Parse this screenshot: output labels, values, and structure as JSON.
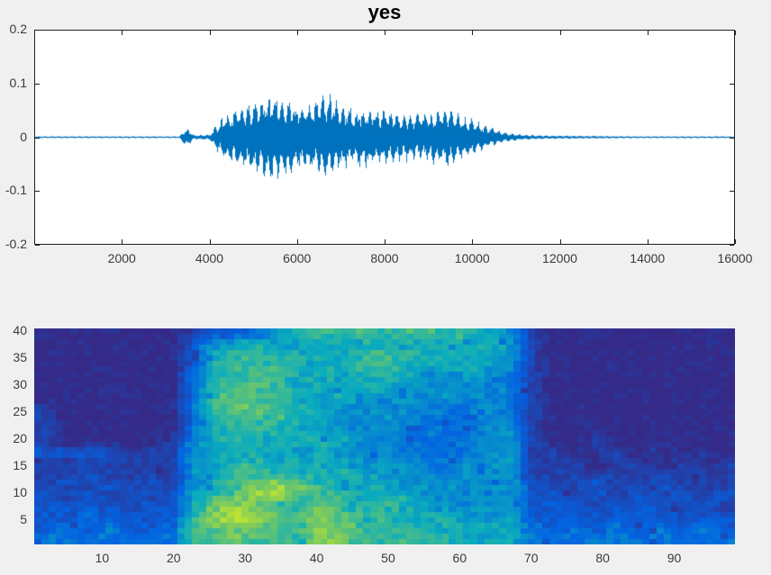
{
  "figure": {
    "background": "#f0f0f0",
    "axes_background": "#ffffff",
    "box_color": "#1f1f1f",
    "tick_label_color": "#3a3a3a",
    "title": "yes"
  },
  "chart_data": [
    {
      "type": "line",
      "title": "yes",
      "series_name": "audio-waveform",
      "line_color": "#0072BD",
      "xlabel": "",
      "ylabel": "",
      "x_range": [
        0,
        16000
      ],
      "y_range": [
        -0.2,
        0.2
      ],
      "x_ticks": [
        2000,
        4000,
        6000,
        8000,
        10000,
        12000,
        14000,
        16000
      ],
      "y_ticks": [
        0.2,
        0.1,
        0,
        -0.1,
        -0.2
      ],
      "grid": false,
      "box": true,
      "envelope_points": [
        [
          0,
          0.002
        ],
        [
          3300,
          0.002
        ],
        [
          3400,
          0.016
        ],
        [
          3500,
          0.018
        ],
        [
          3650,
          0.005
        ],
        [
          4000,
          0.006
        ],
        [
          4150,
          0.028
        ],
        [
          4400,
          0.05
        ],
        [
          4700,
          0.062
        ],
        [
          5000,
          0.075
        ],
        [
          5250,
          0.088
        ],
        [
          5600,
          0.095
        ],
        [
          5850,
          0.082
        ],
        [
          6100,
          0.065
        ],
        [
          6400,
          0.075
        ],
        [
          6800,
          0.088
        ],
        [
          7000,
          0.07
        ],
        [
          7300,
          0.06
        ],
        [
          7600,
          0.065
        ],
        [
          7900,
          0.058
        ],
        [
          8200,
          0.055
        ],
        [
          8500,
          0.05
        ],
        [
          8800,
          0.048
        ],
        [
          9100,
          0.055
        ],
        [
          9400,
          0.062
        ],
        [
          9700,
          0.05
        ],
        [
          10000,
          0.04
        ],
        [
          10300,
          0.025
        ],
        [
          10600,
          0.015
        ],
        [
          10900,
          0.008
        ],
        [
          11300,
          0.005
        ],
        [
          11600,
          0.004
        ],
        [
          12500,
          0.003
        ],
        [
          14000,
          0.002
        ],
        [
          16000,
          0.002
        ]
      ]
    },
    {
      "type": "heatmap",
      "title": "",
      "series_name": "mel-spectrogram",
      "colormap": "parula",
      "palette_stops": [
        "#352a87",
        "#0363e1",
        "#0aacbe",
        "#81cc59",
        "#f9fb0e"
      ],
      "x_range": [
        0.5,
        98.5
      ],
      "y_range": [
        0.5,
        40.5
      ],
      "x_ticks": [
        10,
        20,
        30,
        40,
        50,
        60,
        70,
        80,
        90
      ],
      "y_ticks": [
        40,
        35,
        30,
        25,
        20,
        15,
        10,
        5
      ],
      "n_time_frames": 98,
      "n_freq_bins": 40,
      "intensity_scale": [
        0,
        9
      ],
      "grid_rows": 20,
      "grid_cols": 33,
      "grid_row_order": "top-to-bottom (row 0 = bins 39-40, row 19 = bins 1-2)",
      "intensity_rows": [
        "000000012234666666666541000000000",
        "000000024555555555555541000000000",
        "000000025665555666555541000000000",
        "000000025666555665555441000000000",
        "000000035666555555444431000000000",
        "000000036676555554444431000000000",
        "000000036766555444443431000000000",
        "100000036776554444433431000000000",
        "100000035666554444333431000000000",
        "100000035665554443333441000000000",
        "100000145555555443333441001000000",
        "222211145555454443333441101101010",
        "111111145565555444334441110110101",
        "112111145666555544434441111111111",
        "121212145678765554444442112112111",
        "212121256788666555444442212121212",
        "222212257876676565544442221222121",
        "223222268987687665554452222222222",
        "232322367776687666555553232323232",
        "333333366766687666655553333333333"
      ]
    }
  ]
}
